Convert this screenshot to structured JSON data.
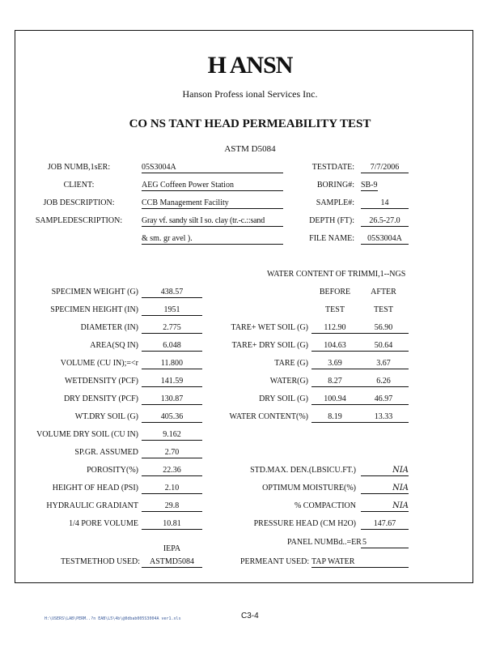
{
  "header": {
    "logo": "H   ANSN",
    "company": "Hanson  Profess ional  Services  Inc.",
    "title": "CO NS TANT    HEAD    PERMEABILITY          TEST",
    "standard": "ASTM D5084"
  },
  "info": {
    "job_number_label": "JOB NUMB,1sER:",
    "job_number": "05S3004A",
    "client_label": "CLIENT:",
    "client": "AEG Coffeen  Power Station",
    "job_description_label": "JOB DESCRIPTION:",
    "job_description": "CCB Management Facility",
    "sample_description_label": "SAMPLEDESCRIPTION:",
    "sample_description_1": "Gray vf. sandy silt I so. clay (tr.-c.::sand",
    "sample_description_2": "& sm. gr avel ).",
    "test_date_label": "TESTDATE:",
    "test_date": "7/7/2006",
    "boring_label": "BORING#:",
    "boring": "SB-9",
    "sample_label": "SAMPLE#:",
    "sample": "14",
    "depth_label": "DEPTH (FT):",
    "depth": "26.5-27.0",
    "file_name_label": "FILE NAME:",
    "file_name": "05S3004A"
  },
  "specimen": [
    {
      "label": "SPECIMEN WEIGHT (G)",
      "value": "438.57"
    },
    {
      "label": "SPECIMEN HEIGHT (IN)",
      "value": "1951"
    },
    {
      "label": "DIAMETER (IN)",
      "value": "2.775"
    },
    {
      "label": "AREA(SQ  IN)",
      "value": "6.048"
    },
    {
      "label": "VOLUME (CU IN);=<r",
      "value": "11.800"
    },
    {
      "label": "WETDENSITY (PCF)",
      "value": "141.59"
    },
    {
      "label": "DRY DENSITY (PCF)",
      "value": "130.87"
    },
    {
      "label": "WT.DRY  SOIL (G)",
      "value": "405.36"
    },
    {
      "label": "VOLUME DRY SOIL (CU IN)",
      "value": "9.162"
    },
    {
      "label": "SP.GR.    ASSUMED",
      "value": "2.70"
    },
    {
      "label": "POROSITY(%)",
      "value": "22.36"
    },
    {
      "label": "HEIGHT OF HEAD (PSI)",
      "value": "2.10"
    },
    {
      "label": "HYDRAULIC  GRADIANT",
      "value": "29.8"
    },
    {
      "label": "1/4 PORE VOLUME",
      "value": "10.81"
    }
  ],
  "water_content": {
    "title": "WATER CONTENT OF TRIMMI,1--NGS",
    "before_1": "BEFORE",
    "before_2": "TEST",
    "after_1": "AFTER",
    "after_2": "TEST",
    "rows": [
      {
        "label": "TARE+  WET SOIL  (G)",
        "before": "112.90",
        "after": "56.90"
      },
      {
        "label": "TARE+ DRY  SOIL (G)",
        "before": "104.63",
        "after": "50.64"
      },
      {
        "label": "TARE (G)",
        "before": "3.69",
        "after": "3.67"
      },
      {
        "label": "WATER(G)",
        "before": "8.27",
        "after": "6.26"
      },
      {
        "label": "DRY  SOIL  (G)",
        "before": "100.94",
        "after": "46.97"
      },
      {
        "label": "WATER CONTENT(%)",
        "before": "8.19",
        "after": "13.33"
      }
    ]
  },
  "compaction": [
    {
      "label": "STD.MAX.  DEN.(LBSICU.FT.)",
      "value": "NIA"
    },
    {
      "label": "OPTIMUM MOISTURE(%)",
      "value": "NIA"
    },
    {
      "label": "% COMPACTION",
      "value": "NIA"
    },
    {
      "label": "PRESSURE HEAD (CM  H2O)",
      "value": "147.67"
    }
  ],
  "panel_label": "PANEL NUMBd..=ER",
  "panel_value": "5",
  "test_method_label": "TESTMETHOD USED:",
  "test_method_top": "IEPA",
  "test_method": "ASTMD5084",
  "permeant_label": "PERMEANT USED:",
  "permeant": "TAP WATER",
  "footer": {
    "path": "H:\\USERS\\LAB\\PERM..?n EAB\\L5\\4b\\@0dbab005S3004A  ver1.xls",
    "page": "C3-4"
  }
}
